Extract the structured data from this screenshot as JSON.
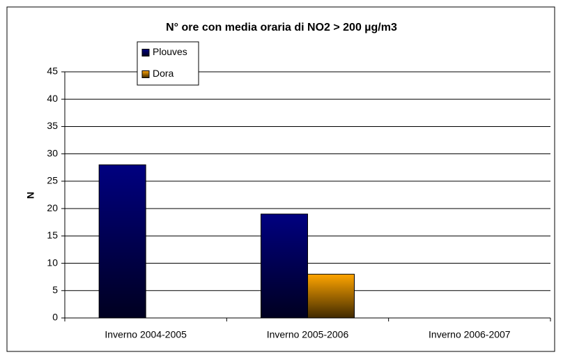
{
  "chart_data": {
    "type": "bar",
    "title": "N° ore con media oraria di  NO2 > 200 µg/m3",
    "ylabel": "N",
    "categories": [
      "Inverno 2004-2005",
      "Inverno 2005-2006",
      "Inverno 2006-2007"
    ],
    "series": [
      {
        "name": "Plouves",
        "color": "#000080",
        "values": [
          28,
          19,
          0
        ]
      },
      {
        "name": "Dora",
        "color": "#ffa500",
        "values": [
          0,
          8,
          0
        ]
      }
    ],
    "ylim": [
      0,
      45
    ],
    "yticks": [
      0,
      5,
      10,
      15,
      20,
      25,
      30,
      35,
      40,
      45
    ],
    "grid": true,
    "legend": "top-left"
  }
}
